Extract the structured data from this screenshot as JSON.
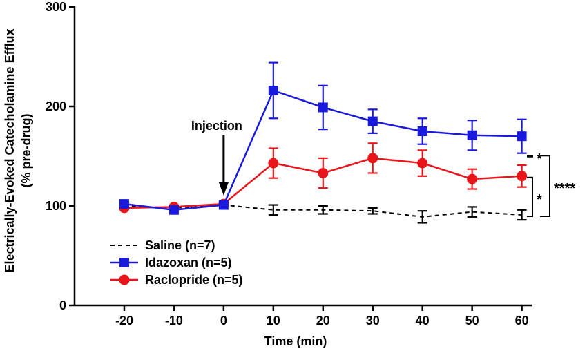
{
  "chart_data": {
    "type": "line",
    "title": "",
    "xlabel": "Time (min)",
    "ylabel_line1": "Electrically-Evoked Catecholamine Efflux",
    "ylabel_line2": "(% pre-drug)",
    "x": [
      -20,
      -10,
      0,
      10,
      20,
      30,
      40,
      50,
      60
    ],
    "x_tick_labels": [
      "-20",
      "-10",
      "0",
      "10",
      "20",
      "30",
      "40",
      "50",
      "60"
    ],
    "xlim": [
      -30,
      62
    ],
    "ylim": [
      0,
      300
    ],
    "y_ticks": [
      0,
      100,
      200,
      300
    ],
    "y_tick_labels": [
      "0",
      "100",
      "200",
      "300"
    ],
    "grid": false,
    "legend_position": "bottom-left",
    "series": [
      {
        "name": "Saline (n=7)",
        "style": "dashed",
        "marker": "none",
        "color": "#000000",
        "values": [
          100,
          98,
          101,
          96,
          96,
          95,
          89,
          94,
          91
        ],
        "errors": [
          0,
          0,
          0,
          5,
          4,
          3,
          6,
          5,
          5
        ]
      },
      {
        "name": "Idazoxan (n=5)",
        "style": "solid",
        "marker": "square",
        "color": "#1a1adc",
        "values": [
          102,
          96,
          101,
          216,
          199,
          185,
          175,
          171,
          170
        ],
        "errors": [
          0,
          0,
          0,
          28,
          22,
          12,
          13,
          15,
          17
        ]
      },
      {
        "name": "Raclopride (n=5)",
        "style": "solid",
        "marker": "circle",
        "color": "#e8161b",
        "values": [
          98,
          99,
          102,
          143,
          133,
          148,
          143,
          127,
          130
        ],
        "errors": [
          0,
          0,
          0,
          15,
          15,
          15,
          13,
          10,
          11
        ]
      }
    ],
    "annotations": [
      {
        "text": "Injection",
        "x": 0
      }
    ],
    "significance": [
      {
        "label": "*",
        "between": [
          "Idazoxan (n=5)",
          "Raclopride (n=5)"
        ]
      },
      {
        "label": "*",
        "between": [
          "Raclopride (n=5)",
          "Saline (n=7)"
        ]
      },
      {
        "label": "****",
        "between": [
          "Idazoxan (n=5)",
          "Saline (n=7)"
        ]
      }
    ]
  }
}
